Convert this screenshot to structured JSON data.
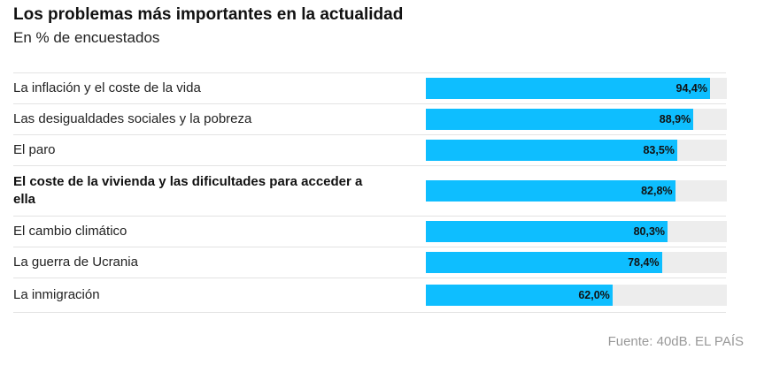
{
  "chart_data": {
    "type": "bar",
    "orientation": "horizontal",
    "title": "Los problemas más importantes en la actualidad",
    "subtitle": "En % de encuestados",
    "xlim": [
      0,
      100
    ],
    "categories": [
      "La inflación y el coste de la vida",
      "Las desigualdades sociales y la pobreza",
      "El paro",
      "El coste de la vivienda y las dificultades para acceder a ella",
      "El cambio climático",
      "La guerra de Ucrania",
      "La inmigración"
    ],
    "values": [
      94.4,
      88.9,
      83.5,
      82.8,
      80.3,
      78.4,
      62.0
    ],
    "value_labels": [
      "94,4%",
      "88,9%",
      "83,5%",
      "82,8%",
      "80,3%",
      "78,4%",
      "62,0%"
    ],
    "highlighted_category": "El coste de la vivienda y las dificultades para acceder a ella",
    "bar_color": "#0ebeff",
    "track_color": "#ededed",
    "source": "Fuente: 40dB. EL PAÍS"
  }
}
